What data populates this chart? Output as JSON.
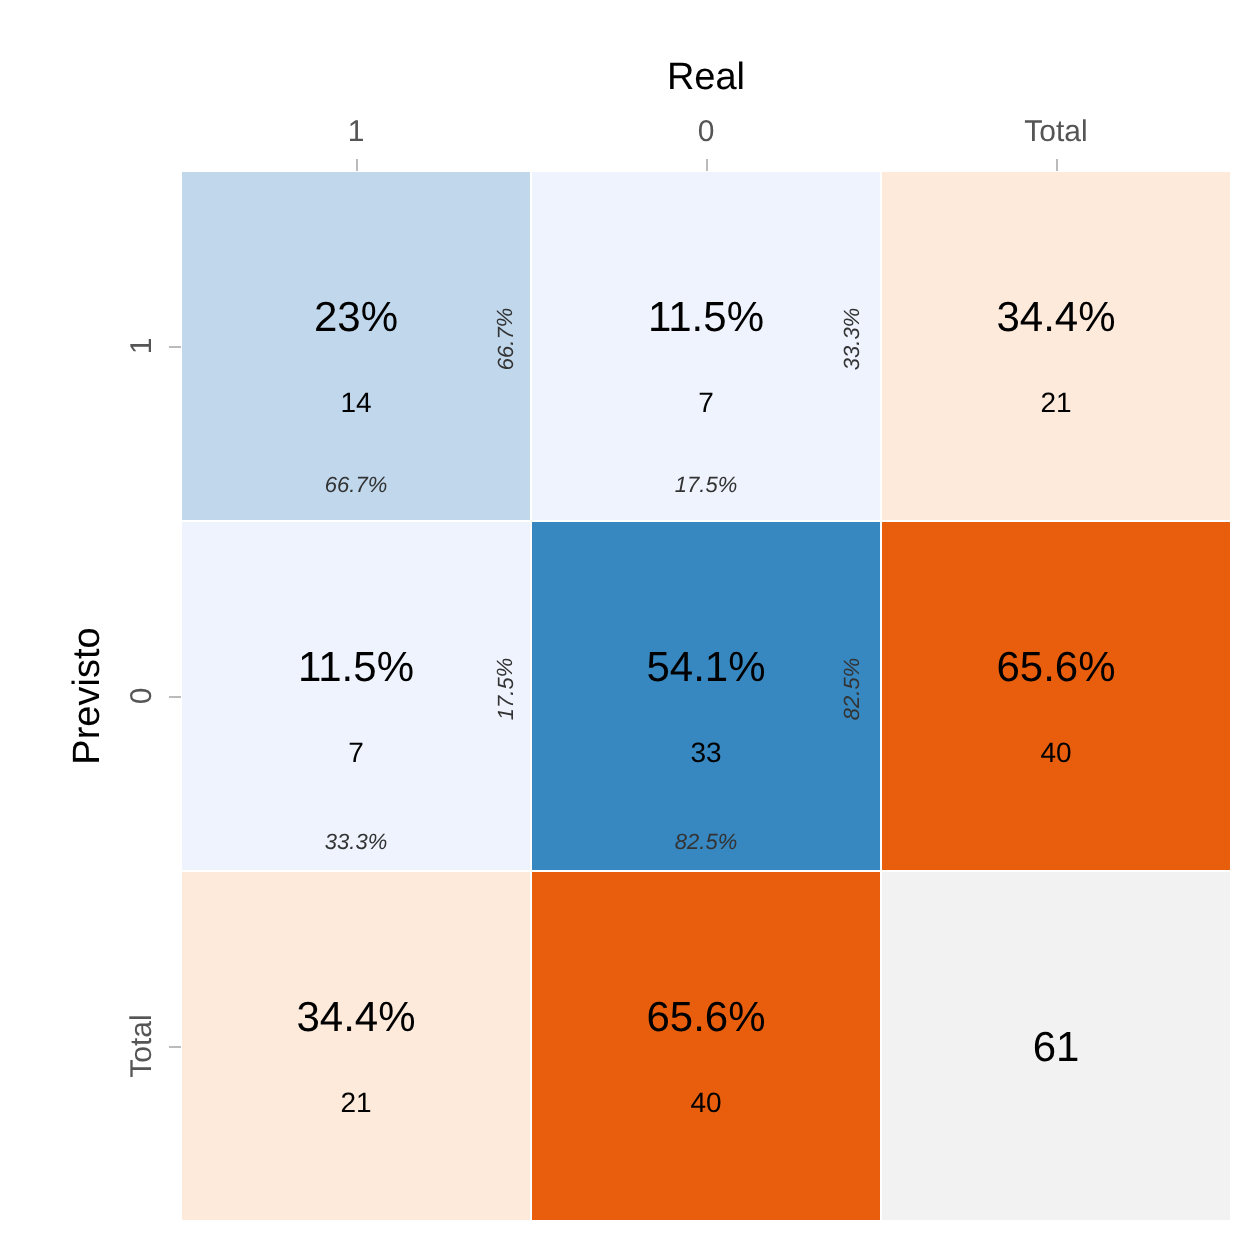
{
  "chart_data": {
    "type": "heatmap",
    "xlabel": "Real",
    "ylabel": "Previsto",
    "categories": [
      "1",
      "0",
      "Total"
    ],
    "y_categories": [
      "1",
      "0",
      "Total"
    ],
    "data_labels": true,
    "cells": [
      [
        14,
        7,
        21
      ],
      [
        7,
        33,
        40
      ],
      [
        21,
        40,
        61
      ]
    ],
    "colors": [
      [
        "#c0d7ec",
        "#eef3fe",
        "#fdeadb"
      ],
      [
        "#eef3fe",
        "#3787c0",
        "#e95e0d"
      ],
      [
        "#fdeadb",
        "#e95e0d",
        "#f2f2f2"
      ]
    ],
    "annotations": [
      "66.7%",
      "66.7%",
      "33.3%",
      "17.5%",
      "17.5%",
      "33.3%",
      "82.5%",
      "82.5%",
      "23%",
      "11.5%",
      "34.4%",
      "11.5%",
      "54.1%",
      "65.6%",
      "34.4%",
      "65.6%"
    ]
  }
}
